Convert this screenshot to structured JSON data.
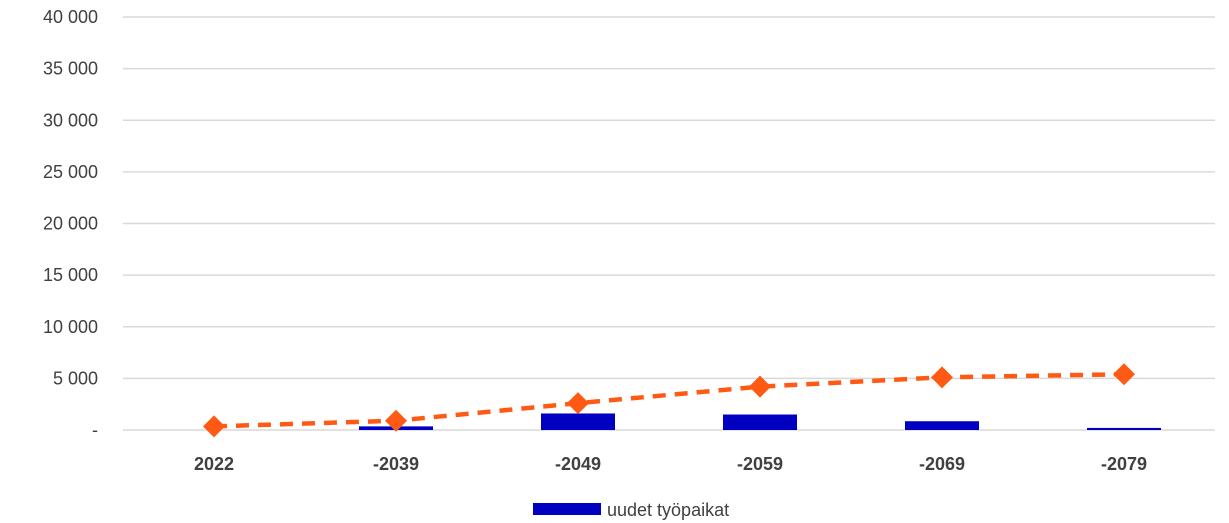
{
  "chart_data": {
    "type": "bar",
    "categories": [
      "2022",
      "-2039",
      "-2049",
      "-2059",
      "-2069",
      "-2079"
    ],
    "series": [
      {
        "name": "uudet työpaikat",
        "kind": "bar",
        "color": "#0000c0",
        "values": [
          0,
          350,
          1600,
          1500,
          850,
          200
        ]
      },
      {
        "kind": "line",
        "style": "dashed",
        "marker": "diamond",
        "color": "#ff5a14",
        "values": [
          350,
          900,
          2600,
          4200,
          5100,
          5400
        ]
      }
    ],
    "title": "",
    "xlabel": "",
    "ylabel": "",
    "ylim": [
      0,
      40000
    ],
    "yticks": [
      0,
      5000,
      10000,
      15000,
      20000,
      25000,
      30000,
      35000,
      40000
    ],
    "ytick_labels": [
      "-",
      "5 000",
      "10 000",
      "15 000",
      "20 000",
      "25 000",
      "30 000",
      "35 000",
      "40 000"
    ],
    "grid": true,
    "legend": {
      "position": "bottom",
      "entries": [
        "uudet työpaikat"
      ]
    },
    "gridline_color": "#d9d9d9"
  }
}
